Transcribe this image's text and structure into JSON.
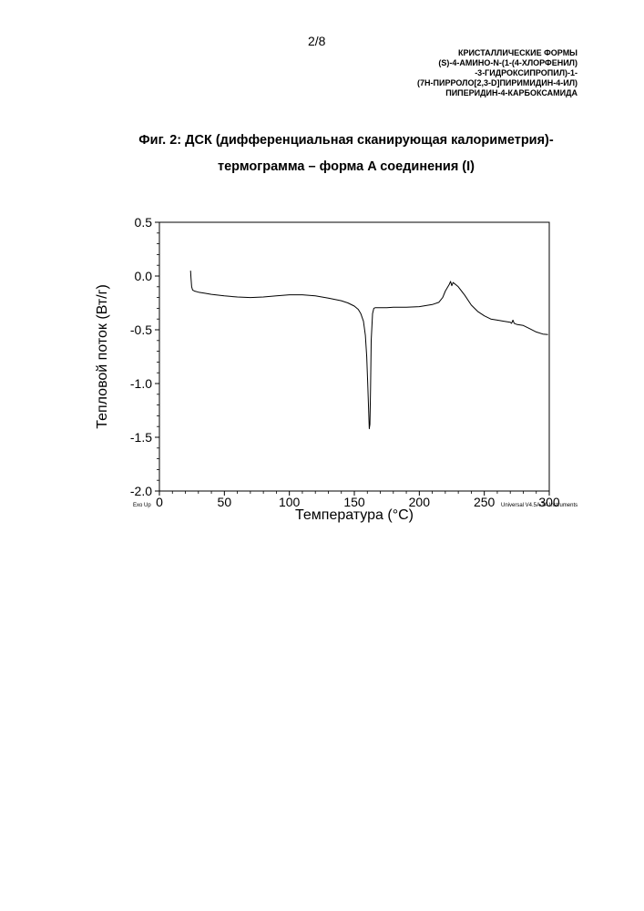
{
  "page_number": "2/8",
  "header": {
    "lines": [
      "КРИСТАЛЛИЧЕСКИЕ ФОРМЫ",
      "(S)-4-АМИНО-N-(1-(4-ХЛОРФЕНИЛ)",
      "-3-ГИДРОКСИПРОПИЛ)-1-",
      "(7H-ПИРРОЛО[2,3-D]ПИРИМИДИН-4-ИЛ)",
      "ПИПЕРИДИН-4-КАРБОКСАМИДА"
    ]
  },
  "figure": {
    "title_line1": "Фиг. 2: ДСК (дифференциальная сканирующая калориметрия)-",
    "title_line2": "термограмма – форма A соединения (I)"
  },
  "chart_data": {
    "type": "line",
    "xlabel": "Температура (°C)",
    "ylabel": "Тепловой поток (Вт/г)",
    "xlim": [
      0,
      300
    ],
    "ylim": [
      -2.0,
      0.5
    ],
    "x_ticks": [
      "0",
      "50",
      "100",
      "150",
      "200",
      "250",
      "300"
    ],
    "y_ticks": [
      "0.5",
      "0.0",
      "-0.5",
      "-1.0",
      "-1.5",
      "-2.0"
    ],
    "corner_left_note": "Exo Up",
    "corner_right_note": "Universal V4.5A TA Instruments",
    "grid": false,
    "series": [
      {
        "x": [
          24,
          24.3,
          24.8,
          25.5,
          27,
          30,
          35,
          40,
          50,
          60,
          70,
          80,
          90,
          100,
          110,
          120,
          130,
          140,
          145,
          150,
          153,
          155,
          157,
          158.5,
          159.5,
          160.3,
          161,
          161.5,
          162,
          162.5,
          163,
          164,
          165,
          166,
          170,
          175,
          180,
          190,
          200,
          210,
          215,
          218,
          220,
          222,
          223,
          224,
          225,
          226,
          227,
          228,
          230,
          235,
          240,
          245,
          250,
          255,
          260,
          265,
          270,
          271,
          272,
          273,
          275,
          280,
          285,
          290,
          295,
          299
        ],
        "y": [
          0.05,
          -0.02,
          -0.1,
          -0.13,
          -0.14,
          -0.15,
          -0.16,
          -0.17,
          -0.185,
          -0.195,
          -0.2,
          -0.195,
          -0.185,
          -0.175,
          -0.175,
          -0.185,
          -0.205,
          -0.23,
          -0.25,
          -0.28,
          -0.31,
          -0.35,
          -0.42,
          -0.55,
          -0.75,
          -1.0,
          -1.25,
          -1.42,
          -1.38,
          -1.05,
          -0.6,
          -0.35,
          -0.3,
          -0.295,
          -0.295,
          -0.295,
          -0.29,
          -0.29,
          -0.285,
          -0.265,
          -0.245,
          -0.2,
          -0.14,
          -0.1,
          -0.08,
          -0.05,
          -0.09,
          -0.06,
          -0.07,
          -0.08,
          -0.1,
          -0.18,
          -0.27,
          -0.33,
          -0.37,
          -0.4,
          -0.41,
          -0.42,
          -0.43,
          -0.44,
          -0.41,
          -0.44,
          -0.45,
          -0.46,
          -0.49,
          -0.52,
          -0.54,
          -0.545
        ]
      }
    ]
  }
}
